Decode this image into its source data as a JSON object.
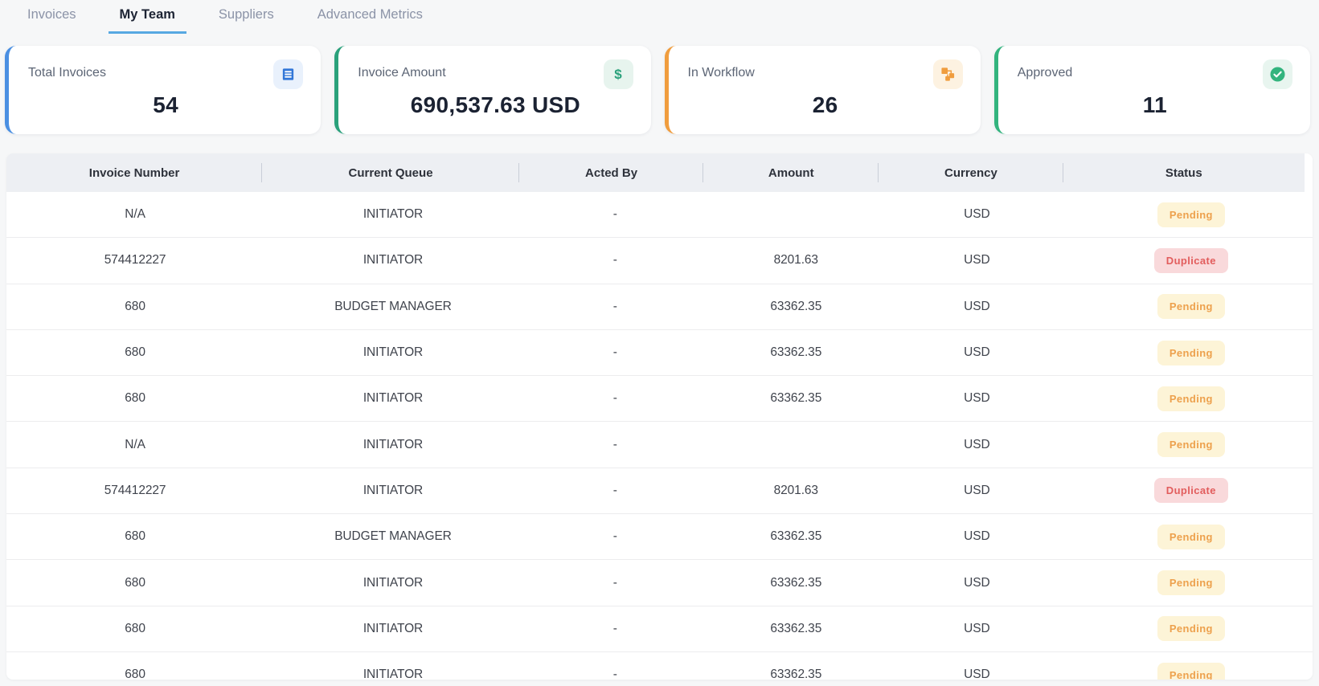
{
  "tabs": [
    {
      "label": "Invoices",
      "active": false
    },
    {
      "label": "My Team",
      "active": true
    },
    {
      "label": "Suppliers",
      "active": false
    },
    {
      "label": "Advanced Metrics",
      "active": false
    }
  ],
  "tab_underline_color": "#57a8e2",
  "cards": [
    {
      "label": "Total Invoices",
      "value": "54",
      "icon": "invoice-list-icon",
      "accent": "#4a8fe2",
      "icon_bg": "#e9f1fc",
      "icon_color": "#3277d8"
    },
    {
      "label": "Invoice Amount",
      "value": "690,537.63 USD",
      "icon": "dollar-icon",
      "accent": "#2aa17b",
      "icon_bg": "#e7f4ee",
      "icon_color": "#2aa17b"
    },
    {
      "label": "In Workflow",
      "value": "26",
      "icon": "workflow-icon",
      "accent": "#f09d3e",
      "icon_bg": "#fdf2e1",
      "icon_color": "#f09d3e"
    },
    {
      "label": "Approved",
      "value": "11",
      "icon": "check-circle-icon",
      "accent": "#33b47e",
      "icon_bg": "#e8f5ef",
      "icon_color": "#33b47e"
    }
  ],
  "table": {
    "columns": [
      "Invoice Number",
      "Current Queue",
      "Acted By",
      "Amount",
      "Currency",
      "Status"
    ],
    "rows": [
      {
        "invoice_number": "N/A",
        "current_queue": "INITIATOR",
        "acted_by": "-",
        "amount": "",
        "currency": "USD",
        "status": "Pending"
      },
      {
        "invoice_number": "574412227",
        "current_queue": "INITIATOR",
        "acted_by": "-",
        "amount": "8201.63",
        "currency": "USD",
        "status": "Duplicate"
      },
      {
        "invoice_number": "680",
        "current_queue": "BUDGET MANAGER",
        "acted_by": "-",
        "amount": "63362.35",
        "currency": "USD",
        "status": "Pending"
      },
      {
        "invoice_number": "680",
        "current_queue": "INITIATOR",
        "acted_by": "-",
        "amount": "63362.35",
        "currency": "USD",
        "status": "Pending"
      },
      {
        "invoice_number": "680",
        "current_queue": "INITIATOR",
        "acted_by": "-",
        "amount": "63362.35",
        "currency": "USD",
        "status": "Pending"
      },
      {
        "invoice_number": "N/A",
        "current_queue": "INITIATOR",
        "acted_by": "-",
        "amount": "",
        "currency": "USD",
        "status": "Pending"
      },
      {
        "invoice_number": "574412227",
        "current_queue": "INITIATOR",
        "acted_by": "-",
        "amount": "8201.63",
        "currency": "USD",
        "status": "Duplicate"
      },
      {
        "invoice_number": "680",
        "current_queue": "BUDGET MANAGER",
        "acted_by": "-",
        "amount": "63362.35",
        "currency": "USD",
        "status": "Pending"
      },
      {
        "invoice_number": "680",
        "current_queue": "INITIATOR",
        "acted_by": "-",
        "amount": "63362.35",
        "currency": "USD",
        "status": "Pending"
      },
      {
        "invoice_number": "680",
        "current_queue": "INITIATOR",
        "acted_by": "-",
        "amount": "63362.35",
        "currency": "USD",
        "status": "Pending"
      },
      {
        "invoice_number": "680",
        "current_queue": "INITIATOR",
        "acted_by": "-",
        "amount": "63362.35",
        "currency": "USD",
        "status": "Pending"
      }
    ],
    "status_styles": {
      "Pending": {
        "bg": "#fdf4d7",
        "color": "#eda14d"
      },
      "Duplicate": {
        "bg": "#f9d9db",
        "color": "#e25d5d"
      }
    }
  }
}
